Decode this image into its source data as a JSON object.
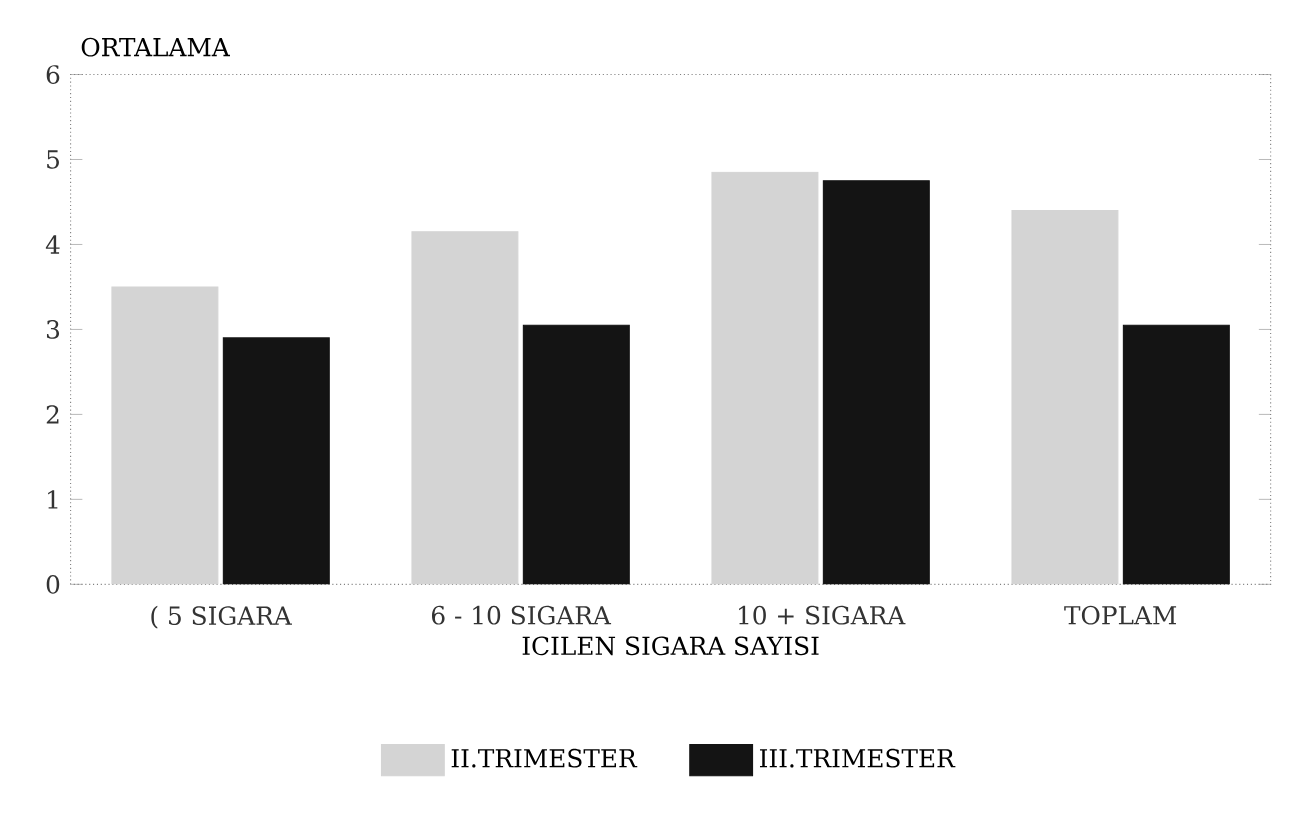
{
  "chart_data": {
    "type": "bar",
    "ylabel": "ORTALAMA",
    "xlabel": "ICILEN SIGARA SAYISI",
    "categories": [
      "( 5 SIGARA",
      "6 - 10 SIGARA",
      "10 + SIGARA",
      "TOPLAM"
    ],
    "series": [
      {
        "name": "II.TRIMESTER",
        "color": "#d4d4d4",
        "values": [
          3.5,
          4.15,
          4.85,
          4.4
        ]
      },
      {
        "name": "III.TRIMESTER",
        "color": "#141414",
        "values": [
          2.9,
          3.05,
          4.75,
          3.05
        ]
      }
    ],
    "ylim": [
      0,
      6
    ],
    "yticks": [
      0,
      1,
      2,
      3,
      4,
      5,
      6
    ],
    "legend": "bottom"
  }
}
